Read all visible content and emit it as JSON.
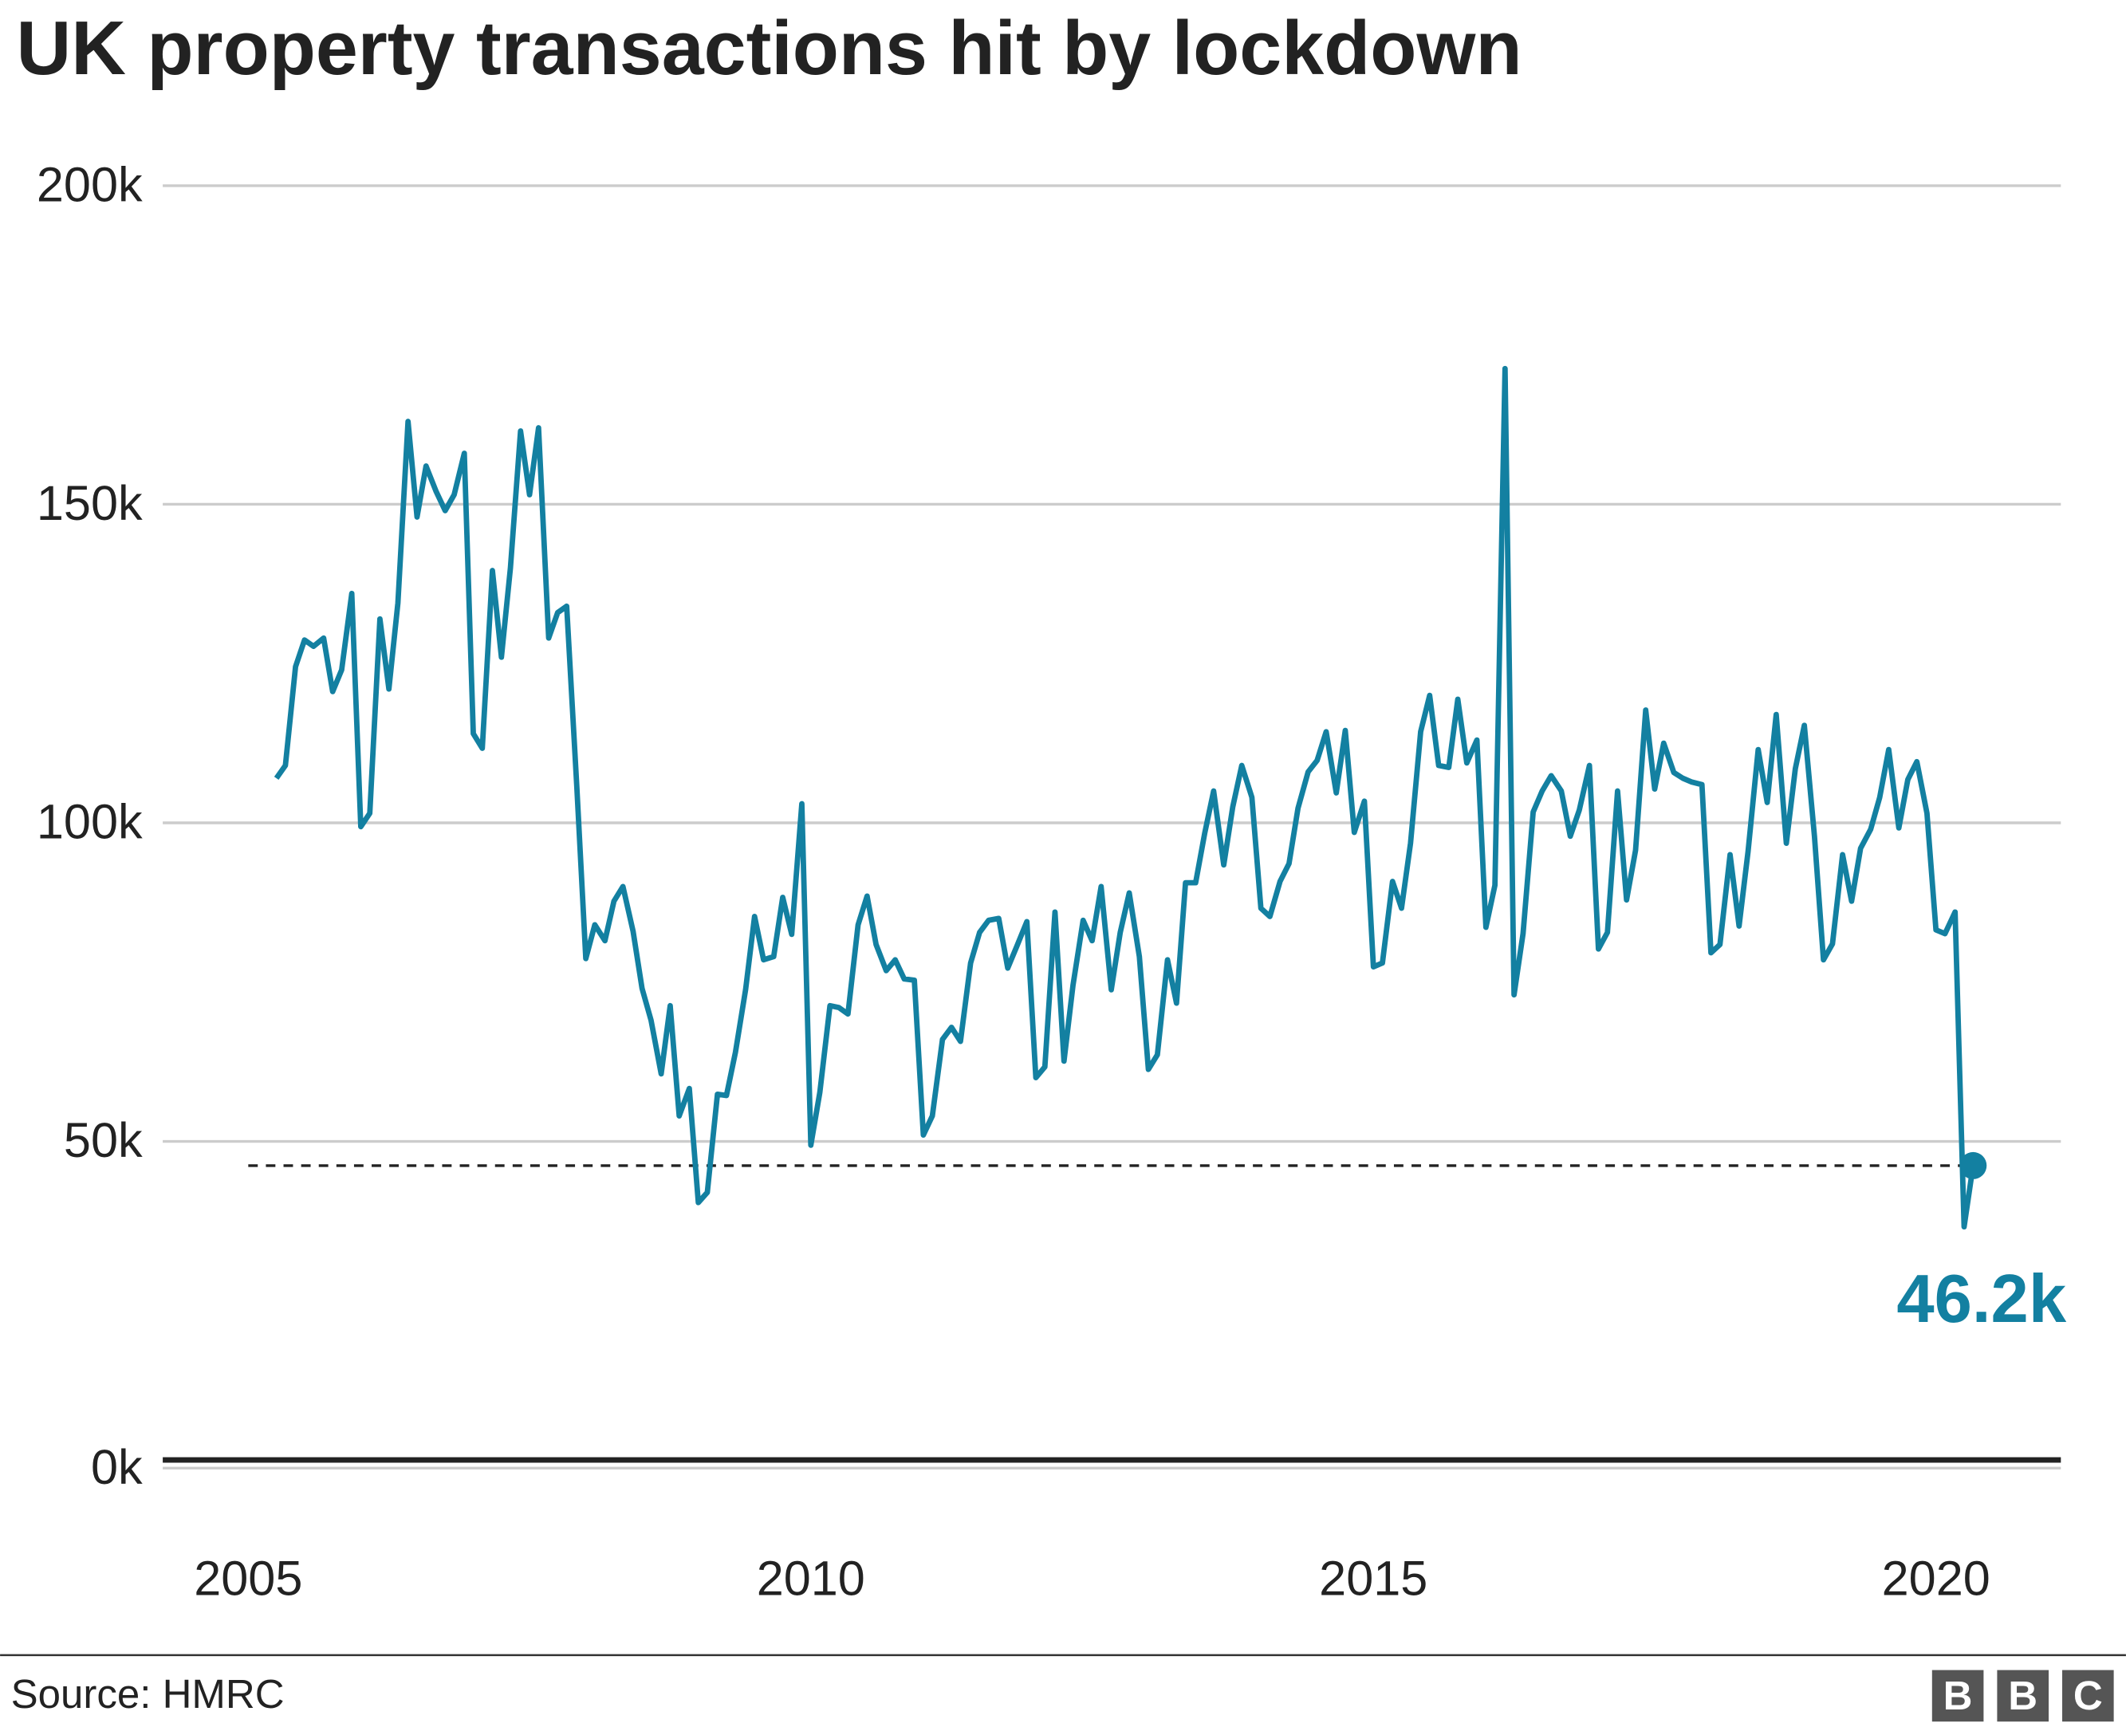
{
  "chart_data": {
    "type": "line",
    "title": "UK property transactions hit by lockdown",
    "source": "Source: HMRC",
    "logo": [
      "B",
      "B",
      "C"
    ],
    "color": "#1380a1",
    "grid": true,
    "x": [
      2005.25,
      2005.33,
      2005.42,
      2005.5,
      2005.58,
      2005.67,
      2005.75,
      2005.83,
      2005.92,
      2006,
      2006.08,
      2006.17,
      2006.25,
      2006.33,
      2006.42,
      2006.5,
      2006.58,
      2006.67,
      2006.75,
      2006.83,
      2006.92,
      2007,
      2007.08,
      2007.17,
      2007.25,
      2007.33,
      2007.42,
      2007.5,
      2007.58,
      2007.67,
      2007.75,
      2007.83,
      2007.92,
      2008,
      2008.08,
      2008.17,
      2008.25,
      2008.33,
      2008.42,
      2008.5,
      2008.58,
      2008.67,
      2008.75,
      2008.83,
      2008.92,
      2009,
      2009.08,
      2009.17,
      2009.25,
      2009.33,
      2009.42,
      2009.5,
      2009.58,
      2009.67,
      2009.75,
      2009.83,
      2009.92,
      2010,
      2010.08,
      2010.17,
      2010.25,
      2010.33,
      2010.42,
      2010.5,
      2010.58,
      2010.67,
      2010.75,
      2010.83,
      2010.92,
      2011,
      2011.08,
      2011.17,
      2011.25,
      2011.33,
      2011.42,
      2011.5,
      2011.58,
      2011.67,
      2011.75,
      2011.83,
      2011.92,
      2012,
      2012.08,
      2012.17,
      2012.25,
      2012.33,
      2012.42,
      2012.5,
      2012.58,
      2012.67,
      2012.75,
      2012.83,
      2012.92,
      2013,
      2013.08,
      2013.17,
      2013.25,
      2013.33,
      2013.42,
      2013.5,
      2013.58,
      2013.67,
      2013.75,
      2013.83,
      2013.92,
      2014,
      2014.08,
      2014.17,
      2014.25,
      2014.33,
      2014.42,
      2014.5,
      2014.58,
      2014.67,
      2014.75,
      2014.83,
      2014.92,
      2015,
      2015.08,
      2015.17,
      2015.25,
      2015.33,
      2015.42,
      2015.5,
      2015.58,
      2015.67,
      2015.75,
      2015.83,
      2015.92,
      2016,
      2016.08,
      2016.17,
      2016.25,
      2016.33,
      2016.42,
      2016.5,
      2016.58,
      2016.67,
      2016.75,
      2016.83,
      2016.92,
      2017,
      2017.08,
      2017.17,
      2017.25,
      2017.33,
      2017.42,
      2017.5,
      2017.58,
      2017.67,
      2017.75,
      2017.83,
      2017.92,
      2018,
      2018.08,
      2018.17,
      2018.25,
      2018.33,
      2018.42,
      2018.5,
      2018.58,
      2018.67,
      2018.75,
      2018.83,
      2018.92,
      2019,
      2019.08,
      2019.17,
      2019.25,
      2019.33,
      2019.42,
      2019.5,
      2019.58,
      2019.67,
      2019.75,
      2019.83,
      2019.92,
      2020,
      2020.08,
      2020.17,
      2020.25,
      2020.33
    ],
    "values": [
      107000,
      109000,
      124500,
      128700,
      127700,
      129000,
      120600,
      124000,
      136000,
      99400,
      101500,
      132000,
      121000,
      134500,
      163000,
      148000,
      156000,
      152000,
      149000,
      151500,
      158000,
      114000,
      111700,
      139600,
      126000,
      140000,
      161500,
      151500,
      162000,
      129000,
      133000,
      134000,
      105700,
      78700,
      84000,
      81500,
      87700,
      90000,
      83000,
      74000,
      69000,
      60600,
      71300,
      54000,
      58300,
      40400,
      42000,
      57400,
      57200,
      64000,
      73800,
      85300,
      78500,
      79000,
      88300,
      82500,
      103000,
      49400,
      57700,
      71300,
      71000,
      70000,
      84000,
      88500,
      80900,
      76800,
      78500,
      75500,
      75300,
      51000,
      54000,
      66000,
      67900,
      65700,
      78000,
      82800,
      84700,
      85000,
      77200,
      80600,
      84500,
      60000,
      61700,
      86000,
      62600,
      74500,
      84700,
      81500,
      90000,
      73800,
      82800,
      89000,
      79000,
      61300,
      63600,
      78500,
      71700,
      90600,
      90600,
      98300,
      105000,
      93400,
      102500,
      109000,
      104000,
      86600,
      85300,
      90800,
      93600,
      102300,
      108000,
      109800,
      114300,
      104700,
      114500,
      98500,
      103400,
      77400,
      78000,
      90800,
      86600,
      96800,
      114300,
      120000,
      109000,
      108700,
      119400,
      109400,
      113000,
      83600,
      90200,
      171300,
      73000,
      82600,
      101700,
      105000,
      107400,
      105000,
      97900,
      102000,
      109000,
      80200,
      82800,
      105000,
      87900,
      95700,
      117700,
      105300,
      112500,
      107900,
      107000,
      106400,
      106000,
      79600,
      80900,
      95000,
      83800,
      95500,
      111500,
      103200,
      117000,
      96800,
      108500,
      115300,
      97900,
      78500,
      81000,
      95000,
      87700,
      96000,
      99000,
      104000,
      111500,
      99200,
      106800,
      109600,
      101500,
      83200,
      82600,
      86000,
      36600,
      46200
    ],
    "annotation": {
      "value": 46200,
      "label": "46.2k"
    },
    "xlim": [
      2004.24,
      2021.11
    ],
    "xticks": [
      2005,
      2010,
      2015,
      2020
    ],
    "ylim": [
      0,
      200000
    ],
    "yticks": [
      {
        "value": 0,
        "label": "0k"
      },
      {
        "value": 50000,
        "label": "50k"
      },
      {
        "value": 100000,
        "label": "100k"
      },
      {
        "value": 150000,
        "label": "150k"
      },
      {
        "value": 200000,
        "label": "200k"
      }
    ]
  }
}
